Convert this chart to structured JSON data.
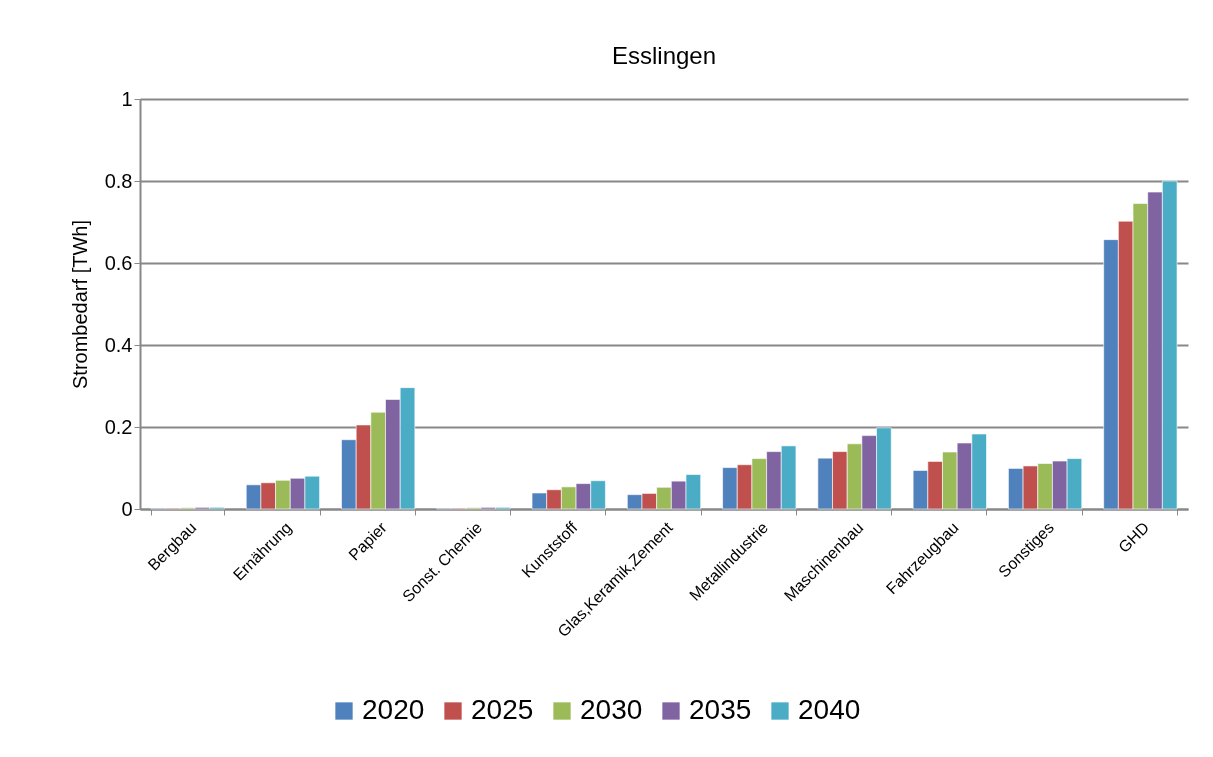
{
  "chart_data": {
    "type": "bar",
    "title": "Esslingen",
    "ylabel": "Strombedarf [TWh]",
    "categories": [
      "Bergbau",
      "Ernährung",
      "Papier",
      "Sonst. Chemie",
      "Kunststoff",
      "Glas,Keramik,Zement",
      "Metallindustrie",
      "Maschinenbau",
      "Fahrzeugbau",
      "Sonstiges",
      "GHD"
    ],
    "series": [
      {
        "name": "2020",
        "color": "#4f81bd",
        "values": [
          0.002,
          0.059,
          0.169,
          0.002,
          0.039,
          0.035,
          0.101,
          0.124,
          0.094,
          0.099,
          0.657
        ]
      },
      {
        "name": "2025",
        "color": "#c0504d",
        "values": [
          0.002,
          0.064,
          0.205,
          0.002,
          0.047,
          0.038,
          0.108,
          0.14,
          0.116,
          0.105,
          0.702
        ]
      },
      {
        "name": "2030",
        "color": "#9bbb59",
        "values": [
          0.003,
          0.07,
          0.236,
          0.003,
          0.054,
          0.053,
          0.123,
          0.159,
          0.139,
          0.111,
          0.745
        ]
      },
      {
        "name": "2035",
        "color": "#8064a2",
        "values": [
          0.004,
          0.075,
          0.267,
          0.004,
          0.062,
          0.068,
          0.14,
          0.179,
          0.161,
          0.117,
          0.773
        ]
      },
      {
        "name": "2040",
        "color": "#4bacc6",
        "values": [
          0.004,
          0.08,
          0.296,
          0.004,
          0.069,
          0.084,
          0.154,
          0.198,
          0.183,
          0.123,
          0.8
        ]
      }
    ],
    "ylim": [
      0,
      1
    ],
    "yticks": [
      {
        "value": 0,
        "label": "0"
      },
      0.2,
      0.4,
      0.6,
      0.8,
      {
        "value": 1,
        "label": "1"
      }
    ],
    "grid": "y",
    "legend": "bottom"
  }
}
